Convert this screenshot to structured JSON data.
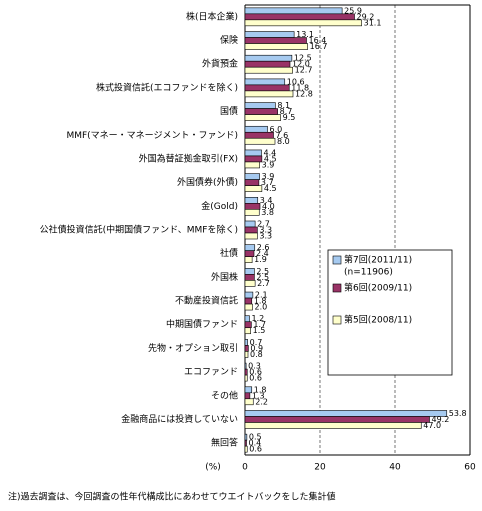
{
  "chart_data": {
    "type": "bar",
    "orientation": "horizontal",
    "categories": [
      "株(日本企業)",
      "保険",
      "外貨預金",
      "株式投資信託(エコファンドを除く)",
      "国債",
      "MMF(マネー・マネージメント・ファンド)",
      "外国為替証拠金取引(FX)",
      "外国債券(外債)",
      "金(Gold)",
      "公社債投資信託(中期国債ファンド、MMFを除く)",
      "社債",
      "外国株",
      "不動産投資信託",
      "中期国債ファンド",
      "先物・オプション取引",
      "エコファンド",
      "その他",
      "金融商品には投資していない",
      "無回答"
    ],
    "series": [
      {
        "name": "第7回(2011/11)",
        "color": "#a6caf0",
        "values": [
          25.9,
          13.1,
          12.5,
          10.6,
          8.1,
          6.0,
          4.4,
          3.9,
          3.4,
          2.7,
          2.6,
          2.5,
          2.1,
          1.2,
          0.7,
          0.3,
          1.8,
          53.8,
          0.5
        ],
        "value_labels": [
          "25.9",
          "13.1",
          "12.5",
          "10.6",
          "8.1",
          "6.0",
          "4.4",
          "3.9",
          "3.4",
          "2.7",
          "2.6",
          "2.5",
          "2.1",
          "1.2",
          "0.7",
          "0.3",
          "1.8",
          "53.8",
          "0.5"
        ]
      },
      {
        "name": "第6回(2009/11)",
        "color": "#993366",
        "values": [
          29.2,
          16.4,
          12.0,
          11.8,
          8.7,
          7.6,
          4.5,
          3.7,
          4.0,
          3.3,
          2.4,
          2.5,
          1.8,
          1.7,
          0.9,
          0.6,
          1.3,
          49.2,
          0.4
        ],
        "value_labels": [
          "29.2",
          "16.4",
          "12.0",
          "11.8",
          "8.7",
          "7.6",
          "4.5",
          "3.7",
          "4.0",
          "3.3",
          "2.4",
          "2.5",
          "1.8",
          "1.7",
          "0.9",
          "0.6",
          "1.3",
          "49.2",
          "0.4"
        ]
      },
      {
        "name": "第5回(2008/11)",
        "color": "#ffffcc",
        "values": [
          31.1,
          16.7,
          12.7,
          12.8,
          9.5,
          8.0,
          3.9,
          4.5,
          3.8,
          3.3,
          1.9,
          2.7,
          2.0,
          1.5,
          0.8,
          0.6,
          2.2,
          47.0,
          0.6
        ],
        "value_labels": [
          "31.1",
          "16.7",
          "12.7",
          "12.8",
          "9.5",
          "8.0",
          "3.9",
          "4.5",
          "3.8",
          "3.3",
          "1.9",
          "2.7",
          "2.0",
          "1.5",
          "0.8",
          "0.6",
          "2.2",
          "47.0",
          "0.6"
        ]
      }
    ],
    "legend_note": "(n=11906)",
    "xlabel": "(%)",
    "xlim": [
      0,
      60
    ],
    "xticks": [
      0,
      20,
      40,
      60
    ],
    "grid": true,
    "footnote": "注)過去調査は、今回調査の性年代構成比にあわせてウエイトバックをした集計値"
  }
}
